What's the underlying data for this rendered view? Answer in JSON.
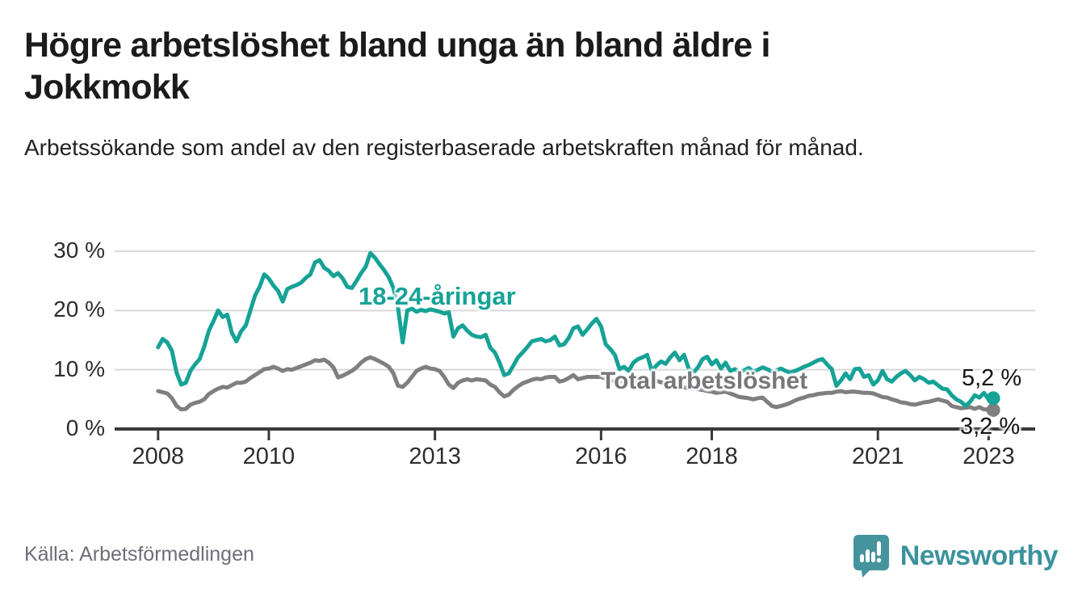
{
  "header": {
    "title_lines": [
      "Högre arbetslöshet bland unga än bland äldre i",
      "Jokkmokk"
    ],
    "title_full": "Högre arbetslöshet bland unga än bland äldre i Jokkmokk",
    "subtitle": "Arbetssökande som andel av den registerbaserade arbetskraften månad för månad."
  },
  "footer": {
    "source": "Källa: Arbetsförmedlingen",
    "brand_name": "Newsworthy"
  },
  "colors": {
    "youth_line": "#16a296",
    "total_line": "#7f7f82",
    "total_label_text": "#76767b",
    "axis": "#3a3a3a",
    "gridline": "#d9d9d9",
    "logo_teal": "#45939c",
    "brand_text": "#3b929c"
  },
  "chart_data": {
    "type": "line",
    "title": "Högre arbetslöshet bland unga än bland äldre i Jokkmokk",
    "subtitle": "Arbetssökande som andel av den registerbaserade arbetskraften månad för månad.",
    "frequency": "monthly",
    "x_start": "2008-01",
    "x_end": "2023-02",
    "ylim": [
      0,
      31
    ],
    "grid": "horizontal",
    "legend_position": "inline-labels",
    "x_ticks": [
      {
        "label": "2008",
        "year": 2008
      },
      {
        "label": "2010",
        "year": 2010
      },
      {
        "label": "2013",
        "year": 2013
      },
      {
        "label": "2016",
        "year": 2016
      },
      {
        "label": "2018",
        "year": 2018
      },
      {
        "label": "2021",
        "year": 2021
      },
      {
        "label": "2023",
        "year": 2023
      }
    ],
    "y_ticks": [
      {
        "label": "30 %",
        "value": 30
      },
      {
        "label": "20 %",
        "value": 20
      },
      {
        "label": "10 %",
        "value": 10
      },
      {
        "label": "0 %",
        "value": 0
      }
    ],
    "series": [
      {
        "name": "youth",
        "label": "18-24-åringar",
        "color": "#16a296",
        "end_label": "5,2 %",
        "end_value": 5.2,
        "values": [
          13.8,
          15.2,
          14.6,
          13.2,
          9.5,
          7.5,
          7.8,
          9.8,
          10.9,
          11.8,
          13.9,
          16.6,
          18.2,
          20.0,
          18.9,
          19.3,
          16.2,
          14.8,
          16.5,
          17.5,
          20.0,
          22.5,
          24.0,
          26.1,
          25.4,
          24.2,
          23.3,
          21.5,
          23.6,
          24.0,
          24.3,
          24.7,
          25.5,
          26.1,
          28.1,
          28.5,
          27.2,
          26.7,
          25.8,
          26.3,
          25.4,
          24.0,
          23.8,
          25.0,
          26.3,
          27.4,
          29.7,
          28.9,
          27.8,
          26.8,
          25.6,
          23.8,
          20.5,
          14.6,
          20.0,
          20.3,
          19.8,
          20.1,
          19.9,
          20.2,
          20.0,
          19.8,
          19.5,
          19.7,
          15.6,
          17.0,
          17.5,
          16.6,
          15.9,
          15.6,
          15.5,
          15.9,
          13.7,
          12.9,
          11.2,
          9.1,
          9.4,
          10.7,
          12.1,
          12.9,
          13.8,
          14.8,
          15.0,
          15.2,
          14.8,
          15.0,
          15.6,
          14.1,
          14.3,
          15.4,
          17.0,
          17.3,
          15.9,
          16.8,
          17.8,
          18.6,
          17.3,
          14.3,
          13.5,
          12.5,
          10.1,
          10.5,
          9.8,
          11.2,
          11.8,
          12.1,
          12.5,
          9.8,
          10.7,
          11.4,
          11.0,
          12.1,
          12.9,
          11.6,
          12.5,
          10.2,
          9.5,
          10.4,
          11.8,
          12.2,
          10.9,
          11.6,
          10.2,
          11.2,
          9.8,
          10.1,
          9.6,
          9.9,
          10.3,
          9.7,
          10.0,
          10.4,
          10.1,
          9.7,
          9.9,
          10.2,
          9.8,
          9.5,
          9.8,
          10.1,
          10.5,
          10.8,
          11.2,
          11.6,
          11.8,
          10.9,
          10.1,
          7.3,
          8.2,
          9.4,
          8.4,
          10.1,
          10.2,
          8.8,
          9.1,
          7.5,
          8.2,
          9.8,
          8.4,
          8.0,
          8.8,
          9.4,
          9.8,
          9.1,
          8.2,
          8.8,
          8.4,
          7.8,
          8.0,
          7.4,
          6.8,
          6.7,
          5.7,
          5.0,
          4.6,
          3.9,
          4.6,
          5.7,
          5.3,
          6.1,
          5.0,
          5.2
        ]
      },
      {
        "name": "total",
        "label": "Total arbetslöshet",
        "color": "#7f7f82",
        "end_label": "3,2 %",
        "end_value": 3.2,
        "values": [
          6.4,
          6.2,
          6.0,
          5.2,
          3.9,
          3.3,
          3.4,
          4.1,
          4.4,
          4.6,
          5.0,
          5.9,
          6.4,
          6.8,
          7.1,
          7.0,
          7.4,
          7.8,
          7.8,
          8.0,
          8.6,
          9.1,
          9.6,
          10.1,
          10.2,
          10.5,
          10.2,
          9.8,
          10.1,
          10.0,
          10.3,
          10.6,
          10.9,
          11.2,
          11.6,
          11.5,
          11.7,
          11.2,
          10.4,
          8.7,
          9.0,
          9.4,
          9.8,
          10.4,
          11.2,
          11.8,
          12.1,
          11.8,
          11.4,
          11.0,
          10.5,
          9.4,
          7.3,
          7.1,
          7.8,
          8.8,
          9.8,
          10.2,
          10.5,
          10.2,
          10.1,
          9.8,
          8.8,
          7.5,
          6.9,
          7.8,
          8.2,
          8.4,
          8.2,
          8.4,
          8.3,
          8.2,
          7.5,
          7.1,
          6.2,
          5.5,
          5.8,
          6.6,
          7.2,
          7.7,
          8.0,
          8.3,
          8.5,
          8.4,
          8.7,
          8.8,
          8.8,
          8.0,
          8.2,
          8.6,
          9.1,
          8.4,
          8.6,
          8.8,
          8.8,
          8.8,
          8.8,
          8.5,
          8.2,
          8.0,
          8.0,
          8.1,
          8.2,
          8.1,
          8.2,
          8.2,
          8.3,
          8.2,
          8.1,
          7.9,
          7.7,
          7.5,
          7.3,
          7.1,
          7.0,
          6.9,
          6.8,
          6.7,
          6.6,
          6.4,
          6.3,
          6.1,
          6.2,
          6.3,
          6.0,
          5.7,
          5.4,
          5.3,
          5.2,
          5.0,
          5.2,
          5.3,
          4.6,
          3.9,
          3.7,
          3.9,
          4.1,
          4.4,
          4.8,
          5.1,
          5.3,
          5.6,
          5.7,
          5.9,
          6.0,
          6.1,
          6.1,
          6.3,
          6.4,
          6.2,
          6.3,
          6.3,
          6.2,
          6.1,
          6.1,
          6.0,
          5.7,
          5.4,
          5.3,
          5.0,
          4.8,
          4.5,
          4.4,
          4.2,
          4.1,
          4.3,
          4.5,
          4.6,
          4.8,
          5.0,
          4.8,
          4.6,
          3.9,
          3.7,
          3.5,
          3.6,
          3.7,
          3.4,
          3.7,
          3.3,
          3.3,
          3.2
        ]
      }
    ]
  }
}
